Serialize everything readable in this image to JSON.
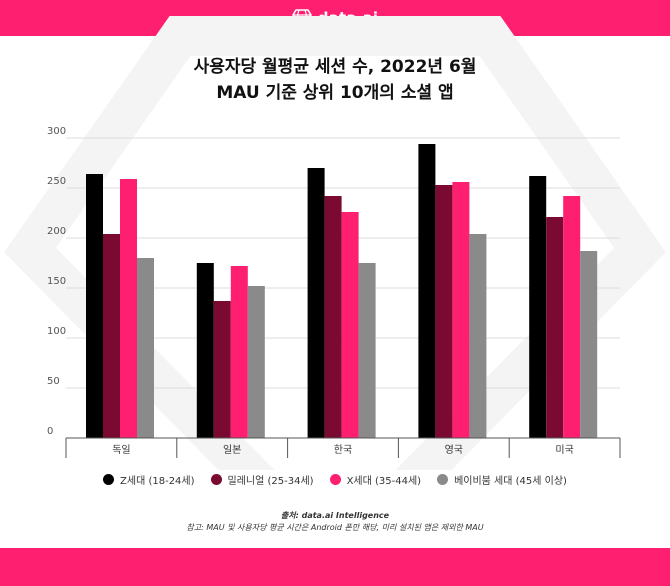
{
  "header": {
    "brand": "data.ai",
    "brand_icon": "diamond-logo-icon"
  },
  "colors": {
    "brand": "#ff1f70",
    "series": [
      "#000000",
      "#7a0a32",
      "#ff1f70",
      "#8a8a8a"
    ]
  },
  "chart_data": {
    "type": "bar",
    "title_line1": "사용자당 월평균 세션 수, 2022년 6월",
    "title_line2": "MAU 기준 상위 10개의 소셜 앱",
    "categories": [
      "독일",
      "일본",
      "한국",
      "영국",
      "미국"
    ],
    "series": [
      {
        "name": "Z세대 (18-24세)",
        "values": [
          264,
          175,
          270,
          294,
          262
        ]
      },
      {
        "name": "밀레니얼 (25-34세)",
        "values": [
          204,
          137,
          242,
          253,
          221
        ]
      },
      {
        "name": "X세대 (35-44세)",
        "values": [
          259,
          172,
          226,
          256,
          242
        ]
      },
      {
        "name": "베이비붐 세대 (45세 이상)",
        "values": [
          180,
          152,
          175,
          204,
          187
        ]
      }
    ],
    "yticks": [
      0,
      50,
      100,
      150,
      200,
      250,
      300
    ],
    "ylim": [
      0,
      300
    ],
    "grid": true,
    "legend_position": "bottom"
  },
  "footer": {
    "source": "출처: data.ai Intelligence",
    "note": "참고: MAU 및 사용자당 평균 시간은 Android 폰만 해당, 미리 설치된 앱은 제외한 MAU"
  }
}
